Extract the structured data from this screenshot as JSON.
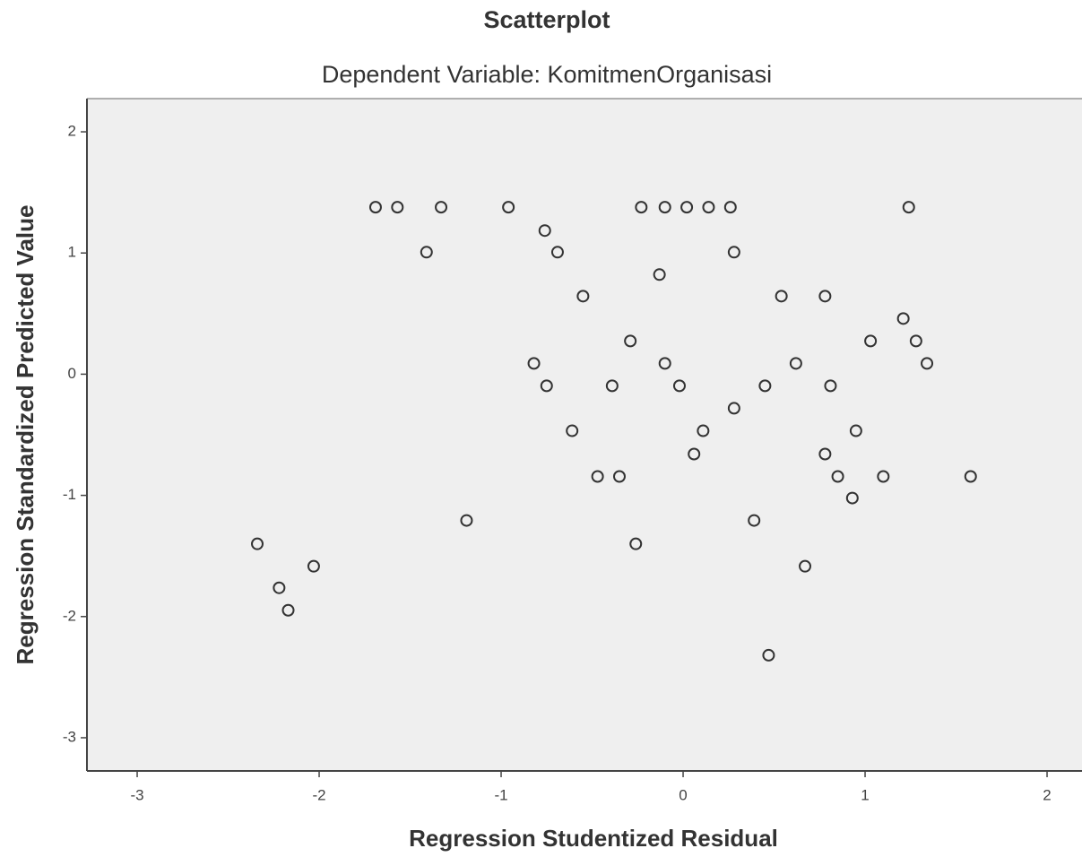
{
  "chart_data": {
    "type": "scatter",
    "title": "Scatterplot",
    "subtitle": "Dependent Variable: KomitmenOrganisasi",
    "x_label": "Regression Studentized Residual",
    "y_label": "Regression Standardized Predicted Value",
    "x": [
      -1.69,
      -1.57,
      -1.33,
      -0.96,
      -0.23,
      -0.1,
      0.02,
      0.14,
      0.26,
      1.24,
      -0.76,
      -1.41,
      -0.69,
      0.28,
      -0.13,
      -0.55,
      0.54,
      0.78,
      1.21,
      -0.29,
      1.03,
      1.28,
      -0.82,
      -0.1,
      0.62,
      1.34,
      -0.75,
      -0.39,
      -0.02,
      0.45,
      0.81,
      0.28,
      -0.61,
      0.11,
      0.95,
      0.06,
      0.78,
      -0.47,
      -0.35,
      0.85,
      1.1,
      1.58,
      0.93,
      -1.19,
      0.39,
      -2.34,
      -0.26,
      -2.03,
      0.67,
      -2.22,
      -2.17,
      0.47
    ],
    "values": [
      1.378,
      1.378,
      1.378,
      1.378,
      1.378,
      1.378,
      1.378,
      1.378,
      1.378,
      1.378,
      1.185,
      1.007,
      1.007,
      1.007,
      0.822,
      0.644,
      0.644,
      0.644,
      0.459,
      0.274,
      0.274,
      0.274,
      0.089,
      0.089,
      0.089,
      0.089,
      -0.096,
      -0.096,
      -0.096,
      -0.096,
      -0.096,
      -0.281,
      -0.467,
      -0.467,
      -0.467,
      -0.659,
      -0.659,
      -0.844,
      -0.844,
      -0.844,
      -0.844,
      -0.844,
      -1.022,
      -1.207,
      -1.207,
      -1.4,
      -1.4,
      -1.585,
      -1.585,
      -1.763,
      -1.948,
      -2.319
    ],
    "color": "#333333",
    "xlim": [
      -3.276,
      2.192
    ],
    "ylim": [
      -3.274,
      2.274
    ],
    "xticks": [
      -3,
      -2,
      -1,
      0,
      1,
      2
    ],
    "yticks": [
      -3,
      -2,
      -1,
      0,
      1,
      2
    ]
  }
}
